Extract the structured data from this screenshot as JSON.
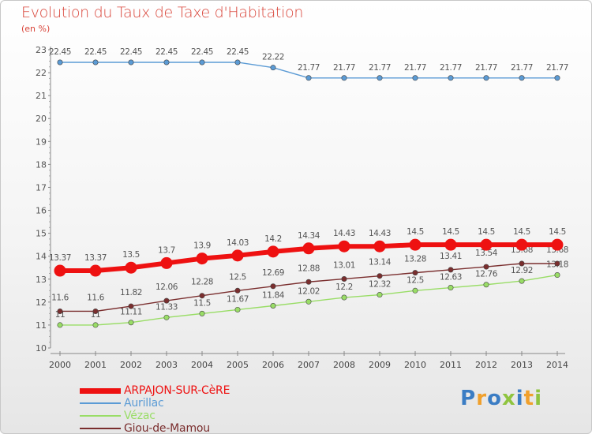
{
  "chart_data": {
    "type": "line",
    "title": "Evolution du Taux de Taxe d'Habitation",
    "subtitle": "(en %)",
    "xlabel": "",
    "ylabel": "",
    "x": [
      "2000",
      "2001",
      "2002",
      "2003",
      "2004",
      "2005",
      "2006",
      "2007",
      "2008",
      "2009",
      "2010",
      "2011",
      "2012",
      "2013",
      "2014"
    ],
    "ylim": [
      10,
      23
    ],
    "yticks": [
      "10",
      "11",
      "12",
      "13",
      "14",
      "15",
      "16",
      "17",
      "18",
      "19",
      "20",
      "21",
      "22",
      "23"
    ],
    "grid": false,
    "legend_position": "bottom-left",
    "series": [
      {
        "name": "ARPAJON-SUR-CèRE",
        "color": "#ee1111",
        "values": [
          13.37,
          13.37,
          13.5,
          13.7,
          13.9,
          14.03,
          14.2,
          14.34,
          14.43,
          14.43,
          14.5,
          14.5,
          14.5,
          14.5,
          14.5
        ],
        "labels": [
          "13.37",
          "13.37",
          "13.5",
          "13.7",
          "13.9",
          "14.03",
          "14.2",
          "14.34",
          "14.43",
          "14.43",
          "14.5",
          "14.5",
          "14.5",
          "14.5",
          "14.5"
        ]
      },
      {
        "name": "Aurillac",
        "color": "#5b9bd5",
        "values": [
          22.45,
          22.45,
          22.45,
          22.45,
          22.45,
          22.45,
          22.22,
          21.77,
          21.77,
          21.77,
          21.77,
          21.77,
          21.77,
          21.77,
          21.77
        ],
        "labels": [
          "22.45",
          "22.45",
          "22.45",
          "22.45",
          "22.45",
          "22.45",
          "22.22",
          "21.77",
          "21.77",
          "21.77",
          "21.77",
          "21.77",
          "21.77",
          "21.77",
          "21.77"
        ]
      },
      {
        "name": "Vézac",
        "color": "#99dd66",
        "values": [
          11,
          11,
          11.11,
          11.33,
          11.5,
          11.67,
          11.84,
          12.02,
          12.2,
          12.32,
          12.5,
          12.63,
          12.76,
          12.92,
          13.18
        ],
        "labels": [
          "11",
          "11",
          "11.11",
          "11.33",
          "11.5",
          "11.67",
          "11.84",
          "12.02",
          "12.2",
          "12.32",
          "12.5",
          "12.63",
          "12.76",
          "12.92",
          "13.18"
        ]
      },
      {
        "name": "Giou-de-Mamou",
        "color": "#7a2e2e",
        "values": [
          11.6,
          11.6,
          11.82,
          12.06,
          12.28,
          12.5,
          12.69,
          12.88,
          13.01,
          13.14,
          13.28,
          13.41,
          13.54,
          13.68,
          13.68
        ],
        "labels": [
          "11.6",
          "11.6",
          "11.82",
          "12.06",
          "12.28",
          "12.5",
          "12.69",
          "12.88",
          "13.01",
          "13.14",
          "13.28",
          "13.41",
          "13.54",
          "13.68",
          "13.68"
        ]
      }
    ]
  },
  "logo": {
    "letters": [
      "P",
      "r",
      "o",
      "x",
      "i",
      "t",
      "i"
    ],
    "colors": [
      "#3b7dc4",
      "#f0a02c",
      "#3b7dc4",
      "#8fc43f",
      "#3b7dc4",
      "#f0a02c",
      "#8fc43f"
    ]
  }
}
